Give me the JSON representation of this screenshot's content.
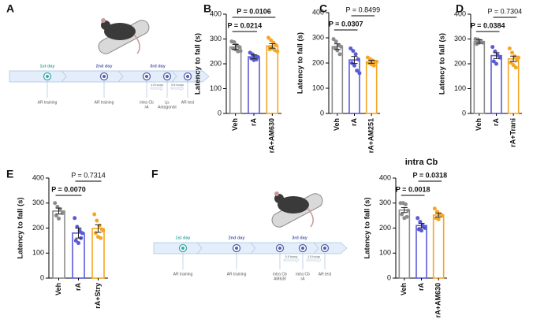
{
  "panel_labels": [
    "A",
    "B",
    "C",
    "D",
    "E",
    "F"
  ],
  "timelines": [
    {
      "days": [
        "1st day",
        "2nd day",
        "3rd day"
      ],
      "events": [
        [
          "AR training"
        ],
        [
          "AR training"
        ],
        [
          "intra Cb",
          "rA"
        ],
        [
          "i.p.",
          "Antagonist"
        ],
        [
          "AR test"
        ]
      ],
      "intervals": [
        "1.5 hours",
        "0.5 hours"
      ]
    },
    {
      "days": [
        "1st day",
        "2nd day",
        "3rd day"
      ],
      "events": [
        [
          "AR training"
        ],
        [
          "AR training"
        ],
        [
          "intra Cb",
          "AM630"
        ],
        [
          "intra Cb",
          "rA"
        ],
        [
          "AR test"
        ]
      ],
      "intervals": [
        "0.5 hours",
        "1.5 hours"
      ]
    }
  ],
  "chart_data": [
    {
      "type": "bar",
      "ylabel": "Latency to fall (s)",
      "categories": [
        "Veh",
        "rA",
        "rA+AM630"
      ],
      "values": [
        268,
        228,
        272
      ],
      "errors": [
        10,
        8,
        9
      ],
      "points": [
        [
          290,
          287,
          275,
          268,
          262,
          258,
          250,
          252
        ],
        [
          245,
          238,
          230,
          228,
          222,
          215,
          218
        ],
        [
          305,
          295,
          285,
          275,
          268,
          262,
          255,
          250,
          258
        ]
      ],
      "colors": [
        "#8c8c8c",
        "#5a5ad8",
        "#f5a623"
      ],
      "ylim": [
        0,
        400
      ],
      "yticks": [
        0,
        100,
        200,
        300,
        400
      ],
      "annotations": [
        {
          "text": "P = 0.0214",
          "from": 0,
          "to": 1,
          "bold": true
        },
        {
          "text": "P = 0.0106",
          "from": 0,
          "to": 2,
          "bold": true
        }
      ]
    },
    {
      "type": "bar",
      "ylabel": "Latency to fall (s)",
      "categories": [
        "Veh",
        "rA",
        "rA+AM251"
      ],
      "values": [
        265,
        212,
        205
      ],
      "errors": [
        11,
        14,
        6
      ],
      "points": [
        [
          295,
          285,
          270,
          265,
          260,
          250,
          235
        ],
        [
          258,
          248,
          235,
          215,
          200,
          190,
          170,
          160
        ],
        [
          222,
          215,
          210,
          205,
          200,
          195,
          190,
          205
        ]
      ],
      "colors": [
        "#8c8c8c",
        "#5a5ad8",
        "#f5a623"
      ],
      "ylim": [
        0,
        400
      ],
      "yticks": [
        0,
        100,
        200,
        300,
        400
      ],
      "annotations": [
        {
          "text": "P = 0.0307",
          "from": 0,
          "to": 1,
          "bold": true
        },
        {
          "text": "P = 0.8499",
          "from": 1,
          "to": 2,
          "bold": false
        }
      ]
    },
    {
      "type": "bar",
      "ylabel": "Latency to fall (s)",
      "categories": [
        "Veh",
        "rA",
        "rA+Trani"
      ],
      "values": [
        290,
        233,
        220
      ],
      "errors": [
        7,
        12,
        11
      ],
      "points": [
        [
          300,
          298,
          292,
          285,
          280,
          285
        ],
        [
          268,
          250,
          235,
          225,
          210,
          200
        ],
        [
          262,
          245,
          230,
          215,
          205,
          195,
          185,
          225
        ]
      ],
      "colors": [
        "#8c8c8c",
        "#5a5ad8",
        "#f5a623"
      ],
      "ylim": [
        0,
        400
      ],
      "yticks": [
        0,
        100,
        200,
        300,
        400
      ],
      "annotations": [
        {
          "text": "P = 0.0384",
          "from": 0,
          "to": 1,
          "bold": true
        },
        {
          "text": "P = 0.7304",
          "from": 1,
          "to": 2,
          "bold": false
        }
      ]
    },
    {
      "type": "bar",
      "ylabel": "Latency to fall (s)",
      "categories": [
        "Veh",
        "rA",
        "rA+Stry"
      ],
      "values": [
        268,
        180,
        198
      ],
      "errors": [
        12,
        20,
        15
      ],
      "points": [
        [
          300,
          285,
          275,
          260,
          250,
          238
        ],
        [
          240,
          205,
          190,
          180,
          150,
          140,
          160
        ],
        [
          255,
          230,
          210,
          195,
          180,
          165,
          160,
          190
        ]
      ],
      "colors": [
        "#8c8c8c",
        "#5a5ad8",
        "#f5a623"
      ],
      "ylim": [
        0,
        400
      ],
      "yticks": [
        0,
        100,
        200,
        300,
        400
      ],
      "annotations": [
        {
          "text": "P = 0.0070",
          "from": 0,
          "to": 1,
          "bold": true
        },
        {
          "text": "P = 0.7314",
          "from": 1,
          "to": 2,
          "bold": false
        }
      ]
    },
    {
      "type": "bar",
      "title": "intra Cb",
      "ylabel": "Latency to fall (s)",
      "categories": [
        "Veh",
        "rA",
        "rA+AM630"
      ],
      "values": [
        272,
        210,
        252
      ],
      "errors": [
        10,
        9,
        8
      ],
      "points": [
        [
          300,
          300,
          295,
          270,
          255,
          240,
          245
        ],
        [
          240,
          225,
          210,
          200,
          195,
          190
        ],
        [
          278,
          265,
          255,
          250,
          240,
          235
        ]
      ],
      "colors": [
        "#8c8c8c",
        "#5a5ad8",
        "#f5a623"
      ],
      "ylim": [
        0,
        400
      ],
      "yticks": [
        0,
        100,
        200,
        300,
        400
      ],
      "annotations": [
        {
          "text": "P = 0.0018",
          "from": 0,
          "to": 1,
          "bold": true
        },
        {
          "text": "P = 0.0318",
          "from": 1,
          "to": 2,
          "bold": true
        }
      ]
    }
  ]
}
